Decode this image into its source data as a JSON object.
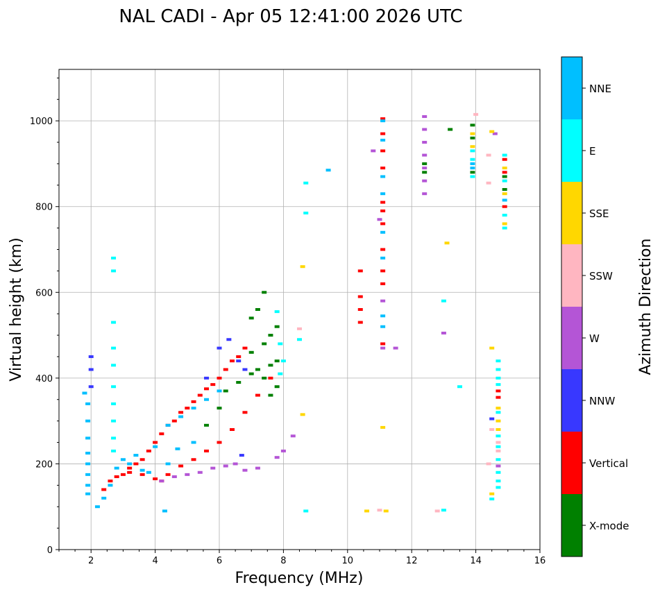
{
  "chart_data": {
    "type": "scatter",
    "title": "NAL CADI - Apr 05 12:41:00 2026 UTC",
    "xlabel": "Frequency (MHz)",
    "ylabel": "Virtual height (km)",
    "xlim": [
      1,
      16
    ],
    "ylim": [
      0,
      1120
    ],
    "xticks": [
      2,
      4,
      6,
      8,
      10,
      12,
      14,
      16
    ],
    "yticks": [
      0,
      200,
      400,
      600,
      800,
      1000
    ],
    "grid": true,
    "colorbar": {
      "title": "Azimuth Direction",
      "categories": [
        {
          "name": "X-mode",
          "color": "#008000"
        },
        {
          "name": "Vertical",
          "color": "#ff0000"
        },
        {
          "name": "NNW",
          "color": "#3838ff"
        },
        {
          "name": "W",
          "color": "#b455d6"
        },
        {
          "name": "SSW",
          "color": "#ffb6c1"
        },
        {
          "name": "SSE",
          "color": "#ffd700"
        },
        {
          "name": "E",
          "color": "#00ffff"
        },
        {
          "name": "NNE",
          "color": "#00bfff"
        }
      ]
    },
    "series": [
      {
        "name": "Vertical",
        "points": [
          [
            2.4,
            140
          ],
          [
            2.6,
            160
          ],
          [
            2.8,
            170
          ],
          [
            3.0,
            175
          ],
          [
            3.2,
            190
          ],
          [
            3.4,
            200
          ],
          [
            3.6,
            210
          ],
          [
            3.8,
            230
          ],
          [
            4.0,
            250
          ],
          [
            4.2,
            270
          ],
          [
            4.4,
            290
          ],
          [
            4.6,
            300
          ],
          [
            4.8,
            320
          ],
          [
            5.0,
            330
          ],
          [
            5.2,
            345
          ],
          [
            5.4,
            360
          ],
          [
            5.6,
            375
          ],
          [
            5.8,
            385
          ],
          [
            6.0,
            400
          ],
          [
            6.2,
            420
          ],
          [
            6.4,
            440
          ],
          [
            6.6,
            450
          ],
          [
            6.8,
            470
          ],
          [
            3.2,
            180
          ],
          [
            3.6,
            175
          ],
          [
            4.0,
            165
          ],
          [
            4.2,
            160
          ],
          [
            4.4,
            175
          ],
          [
            4.8,
            195
          ],
          [
            5.2,
            210
          ],
          [
            5.6,
            230
          ],
          [
            6.0,
            250
          ],
          [
            6.4,
            280
          ],
          [
            6.8,
            320
          ],
          [
            7.2,
            360
          ],
          [
            7.6,
            400
          ],
          [
            10.4,
            650
          ],
          [
            10.4,
            590
          ],
          [
            10.4,
            560
          ],
          [
            10.4,
            530
          ],
          [
            11.1,
            1005
          ],
          [
            11.1,
            970
          ],
          [
            11.1,
            930
          ],
          [
            11.1,
            890
          ],
          [
            11.1,
            810
          ],
          [
            11.1,
            790
          ],
          [
            11.1,
            760
          ],
          [
            11.1,
            700
          ],
          [
            11.1,
            650
          ],
          [
            11.1,
            620
          ],
          [
            11.1,
            480
          ],
          [
            14.7,
            370
          ],
          [
            14.7,
            355
          ],
          [
            14.9,
            910
          ],
          [
            14.9,
            880
          ],
          [
            14.9,
            800
          ]
        ]
      },
      {
        "name": "X-mode",
        "points": [
          [
            6.2,
            370
          ],
          [
            6.6,
            390
          ],
          [
            7.0,
            410
          ],
          [
            7.2,
            420
          ],
          [
            7.4,
            400
          ],
          [
            7.6,
            430
          ],
          [
            7.8,
            440
          ],
          [
            7.4,
            480
          ],
          [
            7.6,
            500
          ],
          [
            7.8,
            520
          ],
          [
            7.2,
            560
          ],
          [
            7.0,
            540
          ],
          [
            7.4,
            600
          ],
          [
            7.0,
            460
          ],
          [
            7.8,
            380
          ],
          [
            7.6,
            360
          ],
          [
            5.6,
            290
          ],
          [
            6.0,
            330
          ],
          [
            12.4,
            900
          ],
          [
            12.4,
            880
          ],
          [
            13.2,
            980
          ],
          [
            13.9,
            990
          ],
          [
            13.9,
            960
          ],
          [
            13.9,
            880
          ],
          [
            14.9,
            870
          ],
          [
            14.9,
            840
          ]
        ]
      },
      {
        "name": "NNW",
        "points": [
          [
            2.0,
            450
          ],
          [
            2.0,
            420
          ],
          [
            2.0,
            380
          ],
          [
            6.0,
            470
          ],
          [
            6.3,
            490
          ],
          [
            6.6,
            440
          ],
          [
            6.8,
            420
          ],
          [
            5.6,
            400
          ],
          [
            6.7,
            220
          ],
          [
            14.5,
            305
          ]
        ]
      },
      {
        "name": "W",
        "points": [
          [
            4.2,
            160
          ],
          [
            4.6,
            170
          ],
          [
            5.0,
            175
          ],
          [
            5.4,
            180
          ],
          [
            5.8,
            190
          ],
          [
            6.2,
            195
          ],
          [
            6.5,
            200
          ],
          [
            6.8,
            185
          ],
          [
            7.2,
            190
          ],
          [
            7.8,
            215
          ],
          [
            8.0,
            230
          ],
          [
            8.3,
            265
          ],
          [
            10.8,
            930
          ],
          [
            11.0,
            770
          ],
          [
            11.1,
            580
          ],
          [
            11.1,
            470
          ],
          [
            11.5,
            470
          ],
          [
            13.0,
            505
          ],
          [
            12.4,
            1010
          ],
          [
            12.4,
            980
          ],
          [
            12.4,
            950
          ],
          [
            12.4,
            920
          ],
          [
            12.4,
            890
          ],
          [
            12.4,
            860
          ],
          [
            12.4,
            830
          ],
          [
            14.6,
            970
          ],
          [
            14.7,
            195
          ]
        ]
      },
      {
        "name": "SSW",
        "points": [
          [
            8.5,
            515
          ],
          [
            11.0,
            92
          ],
          [
            12.8,
            90
          ],
          [
            14.0,
            1015
          ],
          [
            14.4,
            920
          ],
          [
            14.4,
            855
          ],
          [
            14.5,
            280
          ],
          [
            14.7,
            250
          ],
          [
            14.7,
            230
          ],
          [
            14.4,
            200
          ]
        ]
      },
      {
        "name": "SSE",
        "points": [
          [
            8.6,
            660
          ],
          [
            8.6,
            315
          ],
          [
            10.6,
            90
          ],
          [
            11.1,
            285
          ],
          [
            11.2,
            90
          ],
          [
            13.1,
            715
          ],
          [
            14.5,
            470
          ],
          [
            14.5,
            975
          ],
          [
            14.7,
            330
          ],
          [
            14.7,
            300
          ],
          [
            14.7,
            280
          ],
          [
            14.5,
            130
          ],
          [
            13.9,
            970
          ],
          [
            13.9,
            940
          ],
          [
            14.9,
            890
          ],
          [
            14.9,
            830
          ],
          [
            14.9,
            760
          ]
        ]
      },
      {
        "name": "E",
        "points": [
          [
            2.7,
            680
          ],
          [
            2.7,
            650
          ],
          [
            2.7,
            530
          ],
          [
            2.7,
            470
          ],
          [
            2.7,
            430
          ],
          [
            2.7,
            380
          ],
          [
            2.7,
            340
          ],
          [
            2.7,
            300
          ],
          [
            2.7,
            260
          ],
          [
            2.7,
            230
          ],
          [
            8.5,
            490
          ],
          [
            8.7,
            855
          ],
          [
            8.7,
            785
          ],
          [
            8.7,
            90
          ],
          [
            13.0,
            580
          ],
          [
            13.0,
            92
          ],
          [
            13.5,
            380
          ],
          [
            14.7,
            440
          ],
          [
            14.7,
            420
          ],
          [
            14.7,
            400
          ],
          [
            14.7,
            385
          ],
          [
            14.7,
            320
          ],
          [
            14.7,
            265
          ],
          [
            14.7,
            240
          ],
          [
            14.7,
            210
          ],
          [
            14.7,
            180
          ],
          [
            14.7,
            160
          ],
          [
            14.7,
            145
          ],
          [
            14.5,
            118
          ],
          [
            13.9,
            930
          ],
          [
            13.9,
            910
          ],
          [
            13.9,
            870
          ],
          [
            14.9,
            920
          ],
          [
            14.9,
            860
          ],
          [
            14.9,
            780
          ],
          [
            14.9,
            750
          ],
          [
            7.8,
            555
          ],
          [
            7.9,
            480
          ],
          [
            8.0,
            440
          ],
          [
            7.9,
            410
          ]
        ]
      },
      {
        "name": "NNE",
        "points": [
          [
            1.8,
            365
          ],
          [
            1.9,
            340
          ],
          [
            1.9,
            300
          ],
          [
            1.9,
            260
          ],
          [
            1.9,
            225
          ],
          [
            1.9,
            200
          ],
          [
            1.9,
            175
          ],
          [
            1.9,
            150
          ],
          [
            1.9,
            130
          ],
          [
            2.2,
            100
          ],
          [
            2.4,
            120
          ],
          [
            2.6,
            150
          ],
          [
            2.8,
            190
          ],
          [
            3.0,
            210
          ],
          [
            3.2,
            200
          ],
          [
            3.4,
            220
          ],
          [
            3.6,
            185
          ],
          [
            3.8,
            180
          ],
          [
            4.0,
            240
          ],
          [
            4.4,
            290
          ],
          [
            4.8,
            310
          ],
          [
            5.2,
            330
          ],
          [
            5.6,
            350
          ],
          [
            6.0,
            370
          ],
          [
            4.4,
            200
          ],
          [
            4.7,
            235
          ],
          [
            5.2,
            250
          ],
          [
            4.3,
            90
          ],
          [
            9.4,
            885
          ],
          [
            11.1,
            1000
          ],
          [
            11.1,
            955
          ],
          [
            11.1,
            870
          ],
          [
            11.1,
            830
          ],
          [
            11.1,
            740
          ],
          [
            11.1,
            680
          ],
          [
            11.1,
            545
          ],
          [
            11.1,
            520
          ],
          [
            13.9,
            900
          ],
          [
            13.9,
            890
          ],
          [
            14.9,
            815
          ]
        ]
      }
    ]
  }
}
